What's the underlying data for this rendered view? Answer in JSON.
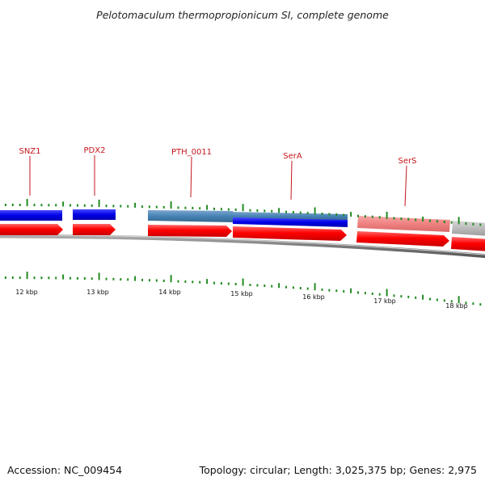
{
  "title": "Pelotomaculum thermopropionicum SI, complete genome",
  "colors": {
    "forward_cds": "#ff0000",
    "reverse_cds": "#0000dd",
    "reverse_cds_muted": "#4682b4",
    "forward_cds_muted": "#f08080",
    "other_cds": "#bbbbbb",
    "backbone": "#808080",
    "tick": "#228b22",
    "label": "#c4161c"
  },
  "gene_labels": [
    {
      "name": "SNZ1"
    },
    {
      "name": "PDX2"
    },
    {
      "name": "PTH_0011"
    },
    {
      "name": "SerA"
    },
    {
      "name": "SerS"
    }
  ],
  "scale_labels": [
    "12 kbp",
    "13 kbp",
    "14 kbp",
    "15 kbp",
    "16 kbp",
    "17 kbp",
    "18 kbp"
  ],
  "footer": {
    "accession": "Accession: NC_009454",
    "summary": "Topology: circular; Length: 3,025,375 bp; Genes: 2,975"
  }
}
